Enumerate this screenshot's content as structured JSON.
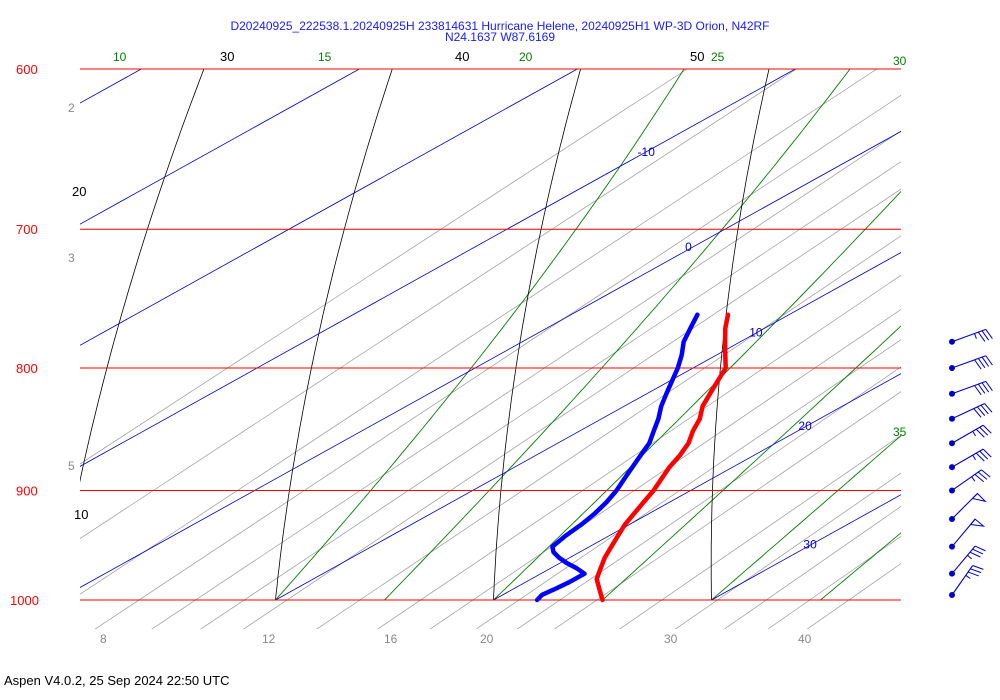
{
  "header": {
    "title_line1": "D20240925_222538.1.20240925H 233814631 Hurricane Helene, 20240925H1 WP-3D Orion, N42RF",
    "title_line2": "N24.1637 W87.6169"
  },
  "footer": {
    "text": "Aspen V4.0.2, 25 Sep 2024  22:50 UTC"
  },
  "colors": {
    "isobar": "#ff0000",
    "isotherm": "#0000cc",
    "dry_adiabat": "#000000",
    "mixing_ratio": "#999999",
    "moist_adiabat": "#008000",
    "temperature": "#ff0000",
    "dewpoint": "#0000ff",
    "wind": "#0000cc"
  },
  "chart_data": {
    "type": "line",
    "diagram": "skew-t log-p",
    "y_axis": {
      "scale": "log pressure",
      "unit": "hPa",
      "range": [
        1000,
        600
      ],
      "ticks": [
        600,
        700,
        800,
        900,
        1000
      ]
    },
    "isobars": [
      600,
      700,
      800,
      900,
      1000
    ],
    "isotherms": [
      {
        "label": "-10",
        "value": -10
      },
      {
        "label": "0",
        "value": 0
      },
      {
        "label": "10",
        "value": 10
      },
      {
        "label": "20",
        "value": 20
      },
      {
        "label": "30",
        "value": 30
      }
    ],
    "dry_adiabat_labels_top": [
      "30",
      "40",
      "50"
    ],
    "dry_adiabat_labels_left": [
      "20",
      "10"
    ],
    "mixing_ratio_labels_left": [
      "2",
      "3",
      "5"
    ],
    "mixing_ratio_labels_bottom": [
      "8",
      "12",
      "16",
      "20",
      "30",
      "40"
    ],
    "moist_adiabat_labels": [
      "10",
      "15",
      "20",
      "25",
      "30",
      "35"
    ],
    "series": [
      {
        "name": "Temperature",
        "points": [
          [
            1000,
            25.0
          ],
          [
            990,
            24.0
          ],
          [
            980,
            23.0
          ],
          [
            970,
            22.3
          ],
          [
            960,
            21.6
          ],
          [
            950,
            21.0
          ],
          [
            940,
            20.4
          ],
          [
            930,
            19.8
          ],
          [
            920,
            19.3
          ],
          [
            910,
            18.8
          ],
          [
            900,
            18.3
          ],
          [
            890,
            17.7
          ],
          [
            880,
            17.1
          ],
          [
            870,
            16.6
          ],
          [
            860,
            16.0
          ],
          [
            850,
            15.2
          ],
          [
            840,
            14.5
          ],
          [
            830,
            13.6
          ],
          [
            820,
            12.9
          ],
          [
            810,
            12.2
          ],
          [
            800,
            11.5
          ],
          [
            790,
            10.4
          ],
          [
            780,
            9.3
          ],
          [
            770,
            8.2
          ],
          [
            760,
            7.2
          ]
        ]
      },
      {
        "name": "Dewpoint",
        "points": [
          [
            1000,
            22.0
          ],
          [
            995,
            21.8
          ],
          [
            990,
            21.9
          ],
          [
            983,
            22.0
          ],
          [
            975,
            22.0
          ],
          [
            970,
            21.2
          ],
          [
            965,
            20.3
          ],
          [
            960,
            19.5
          ],
          [
            955,
            18.8
          ],
          [
            950,
            18.3
          ],
          [
            940,
            18.0
          ],
          [
            930,
            17.8
          ],
          [
            920,
            17.5
          ],
          [
            910,
            17.1
          ],
          [
            900,
            16.6
          ],
          [
            890,
            16.0
          ],
          [
            880,
            15.4
          ],
          [
            870,
            14.8
          ],
          [
            860,
            14.2
          ],
          [
            850,
            13.4
          ],
          [
            840,
            12.6
          ],
          [
            830,
            11.7
          ],
          [
            820,
            10.9
          ],
          [
            810,
            10.1
          ],
          [
            800,
            9.3
          ],
          [
            790,
            8.4
          ],
          [
            780,
            7.4
          ],
          [
            770,
            6.6
          ],
          [
            760,
            5.8
          ]
        ]
      }
    ],
    "wind_barbs": [
      {
        "pressure": 780,
        "direction": 250,
        "speed": 35
      },
      {
        "pressure": 800,
        "direction": 250,
        "speed": 40
      },
      {
        "pressure": 820,
        "direction": 250,
        "speed": 40
      },
      {
        "pressure": 840,
        "direction": 245,
        "speed": 40
      },
      {
        "pressure": 860,
        "direction": 240,
        "speed": 35
      },
      {
        "pressure": 880,
        "direction": 240,
        "speed": 35
      },
      {
        "pressure": 900,
        "direction": 235,
        "speed": 35
      },
      {
        "pressure": 925,
        "direction": 225,
        "speed": 50
      },
      {
        "pressure": 950,
        "direction": 220,
        "speed": 50
      },
      {
        "pressure": 975,
        "direction": 220,
        "speed": 35
      },
      {
        "pressure": 1000,
        "direction": 215,
        "speed": 35
      }
    ]
  }
}
